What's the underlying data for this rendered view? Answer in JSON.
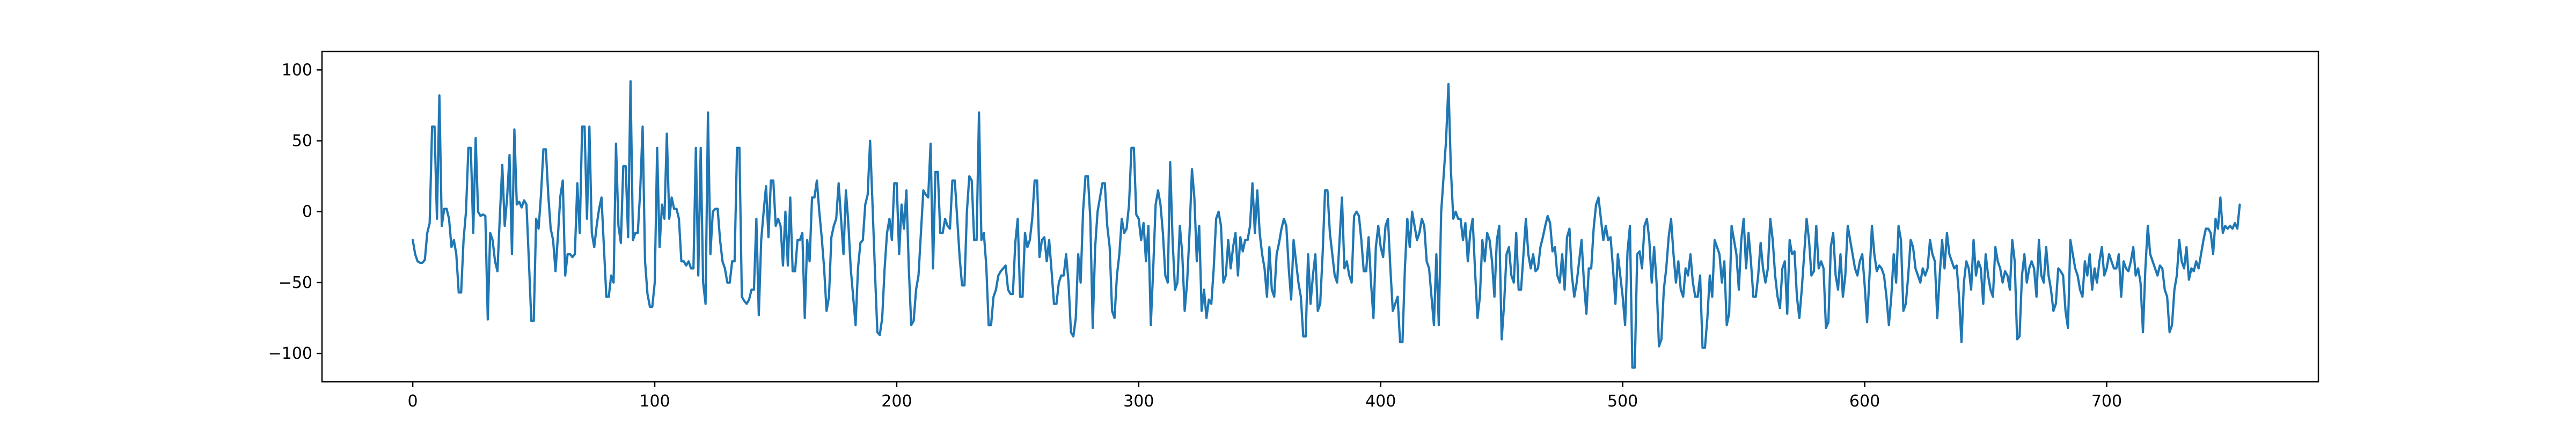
{
  "chart_data": {
    "type": "line",
    "title": "",
    "xlabel": "",
    "ylabel": "",
    "xlim": [
      -37.5,
      787.5
    ],
    "ylim": [
      -120,
      113
    ],
    "xticks": [
      0,
      100,
      200,
      300,
      400,
      500,
      600,
      700
    ],
    "yticks": [
      -100,
      -50,
      0,
      50,
      100
    ],
    "grid": false,
    "legend": "none",
    "colors": {
      "series": "#1f77b4",
      "axes": "#000000",
      "background": "#ffffff"
    },
    "series": [
      {
        "values": [
          -20,
          -30,
          -35,
          -36,
          -36,
          -34,
          -15,
          -8,
          60,
          60,
          -5,
          82,
          -10,
          2,
          2,
          -5,
          -25,
          -20,
          -30,
          -57,
          -57,
          -20,
          0,
          45,
          45,
          -15,
          52,
          0,
          -3,
          -2,
          -3,
          -76,
          -15,
          -20,
          -35,
          -42,
          -3,
          33,
          -10,
          10,
          40,
          -30,
          58,
          5,
          7,
          3,
          8,
          5,
          -35,
          -77,
          -77,
          -5,
          -12,
          12,
          44,
          44,
          12,
          -12,
          -20,
          -42,
          -17,
          11,
          22,
          -45,
          -30,
          -30,
          -32,
          -30,
          20,
          -15,
          60,
          60,
          -5,
          60,
          -15,
          -25,
          -10,
          2,
          10,
          -25,
          -60,
          -60,
          -45,
          -50,
          48,
          -10,
          -22,
          32,
          32,
          -18,
          92,
          -20,
          -15,
          -15,
          15,
          60,
          -35,
          -58,
          -67,
          -67,
          -50,
          45,
          -25,
          5,
          -5,
          55,
          -5,
          10,
          2,
          2,
          -5,
          -35,
          -35,
          -38,
          -35,
          -40,
          -40,
          45,
          -45,
          45,
          -50,
          -65,
          70,
          -30,
          0,
          2,
          2,
          -20,
          -35,
          -40,
          -50,
          -50,
          -35,
          -35,
          45,
          45,
          -60,
          -63,
          -65,
          -62,
          -55,
          -55,
          -5,
          -73,
          -20,
          0,
          18,
          -18,
          22,
          22,
          -10,
          -5,
          -10,
          -38,
          0,
          -38,
          10,
          -42,
          -42,
          -20,
          -20,
          -15,
          -75,
          -20,
          -35,
          10,
          10,
          22,
          0,
          -18,
          -40,
          -70,
          -60,
          -18,
          -10,
          -5,
          20,
          -5,
          -30,
          15,
          -8,
          -40,
          -60,
          -80,
          -40,
          -22,
          -20,
          5,
          12,
          50,
          5,
          -42,
          -85,
          -87,
          -75,
          -40,
          -15,
          -5,
          -20,
          20,
          20,
          -30,
          5,
          -12,
          15,
          -40,
          -80,
          -77,
          -55,
          -45,
          -15,
          15,
          12,
          10,
          48,
          -40,
          28,
          28,
          -15,
          -15,
          -5,
          -10,
          -12,
          22,
          22,
          -5,
          -32,
          -52,
          -52,
          0,
          25,
          22,
          -20,
          -20,
          70,
          -20,
          -15,
          -38,
          -80,
          -80,
          -60,
          -55,
          -45,
          -42,
          -40,
          -38,
          -55,
          -58,
          -58,
          -22,
          -5,
          -60,
          -60,
          -15,
          -25,
          -20,
          -5,
          22,
          22,
          -32,
          -20,
          -18,
          -35,
          -20,
          -42,
          -65,
          -65,
          -50,
          -45,
          -45,
          -30,
          -50,
          -85,
          -88,
          -75,
          -30,
          -50,
          0,
          25,
          25,
          -5,
          -82,
          -25,
          0,
          10,
          20,
          20,
          -10,
          -25,
          -70,
          -75,
          -45,
          -30,
          -5,
          -15,
          -12,
          5,
          45,
          45,
          -2,
          -5,
          -20,
          -8,
          -35,
          -10,
          -80,
          -40,
          5,
          15,
          5,
          -15,
          -45,
          -50,
          35,
          -20,
          -55,
          -50,
          -10,
          -30,
          -70,
          -50,
          -15,
          30,
          10,
          -35,
          -10,
          -70,
          -55,
          -75,
          -62,
          -65,
          -40,
          -5,
          0,
          -10,
          -50,
          -45,
          -20,
          -40,
          -25,
          -15,
          -45,
          -18,
          -28,
          -20,
          -20,
          -10,
          20,
          -15,
          15,
          -15,
          -30,
          -40,
          -60,
          -25,
          -55,
          -60,
          -30,
          -22,
          -12,
          -5,
          -10,
          -40,
          -62,
          -20,
          -35,
          -50,
          -60,
          -88,
          -88,
          -30,
          -65,
          -45,
          -30,
          -70,
          -65,
          -30,
          15,
          15,
          -15,
          -30,
          -45,
          -50,
          -20,
          10,
          -40,
          -35,
          -45,
          -50,
          -3,
          0,
          -3,
          -20,
          -42,
          -42,
          -18,
          -50,
          -75,
          -25,
          -10,
          -25,
          -32,
          -10,
          -5,
          -40,
          -70,
          -65,
          -60,
          -92,
          -92,
          -40,
          -5,
          -25,
          0,
          -10,
          -20,
          -15,
          -5,
          -10,
          -35,
          -40,
          -60,
          -80,
          -30,
          -80,
          0,
          25,
          50,
          90,
          30,
          -5,
          0,
          -5,
          -5,
          -20,
          -8,
          -35,
          -15,
          -5,
          -42,
          -75,
          -60,
          -20,
          -35,
          -15,
          -20,
          -35,
          -60,
          -20,
          -10,
          -90,
          -65,
          -30,
          -25,
          -45,
          -50,
          -15,
          -55,
          -55,
          -30,
          -5,
          -30,
          -40,
          -30,
          -42,
          -40,
          -25,
          -18,
          -10,
          -3,
          -8,
          -28,
          -25,
          -45,
          -50,
          -30,
          -55,
          -18,
          -12,
          -45,
          -60,
          -50,
          -35,
          -20,
          -50,
          -72,
          -40,
          -40,
          -12,
          5,
          10,
          -5,
          -20,
          -10,
          -20,
          -18,
          -40,
          -65,
          -30,
          -45,
          -60,
          -80,
          -28,
          -10,
          -110,
          -110,
          -30,
          -28,
          -40,
          -10,
          -5,
          -20,
          -50,
          -25,
          -50,
          -95,
          -90,
          -55,
          -40,
          -18,
          -5,
          -30,
          -50,
          -35,
          -55,
          -60,
          -40,
          -45,
          -30,
          -50,
          -60,
          -60,
          -45,
          -96,
          -96,
          -75,
          -45,
          -60,
          -20,
          -25,
          -30,
          -50,
          -35,
          -80,
          -72,
          -10,
          -20,
          -30,
          -55,
          -20,
          -5,
          -40,
          -15,
          -35,
          -60,
          -60,
          -45,
          -22,
          -40,
          -50,
          -40,
          -5,
          -20,
          -45,
          -60,
          -68,
          -40,
          -35,
          -72,
          -20,
          -30,
          -28,
          -60,
          -75,
          -55,
          -30,
          -5,
          -20,
          -45,
          -42,
          -10,
          -40,
          -35,
          -40,
          -82,
          -78,
          -25,
          -15,
          -45,
          -55,
          -30,
          -60,
          -45,
          -10,
          -20,
          -30,
          -40,
          -45,
          -35,
          -30,
          -52,
          -78,
          -45,
          -10,
          -30,
          -42,
          -38,
          -40,
          -45,
          -60,
          -80,
          -60,
          -30,
          -50,
          -10,
          -20,
          -70,
          -65,
          -45,
          -20,
          -25,
          -40,
          -45,
          -50,
          -40,
          -45,
          -40,
          -20,
          -30,
          -35,
          -75,
          -45,
          -20,
          -40,
          -15,
          -30,
          -35,
          -40,
          -38,
          -60,
          -92,
          -50,
          -35,
          -40,
          -55,
          -20,
          -45,
          -35,
          -40,
          -65,
          -30,
          -45,
          -55,
          -60,
          -25,
          -35,
          -40,
          -50,
          -42,
          -45,
          -55,
          -20,
          -35,
          -90,
          -88,
          -45,
          -30,
          -50,
          -40,
          -35,
          -40,
          -60,
          -20,
          -45,
          -50,
          -25,
          -45,
          -55,
          -70,
          -65,
          -40,
          -42,
          -45,
          -70,
          -82,
          -20,
          -30,
          -40,
          -45,
          -55,
          -60,
          -35,
          -45,
          -30,
          -55,
          -40,
          -50,
          -35,
          -25,
          -45,
          -40,
          -30,
          -35,
          -40,
          -40,
          -30,
          -60,
          -35,
          -40,
          -42,
          -35,
          -25,
          -45,
          -40,
          -50,
          -85,
          -40,
          -10,
          -30,
          -35,
          -40,
          -45,
          -38,
          -40,
          -55,
          -60,
          -85,
          -80,
          -55,
          -45,
          -20,
          -35,
          -40,
          -25,
          -48,
          -40,
          -42,
          -35,
          -40,
          -30,
          -20,
          -12,
          -12,
          -15,
          -30,
          -5,
          -12,
          10,
          -15,
          -10,
          -12,
          -10,
          -12,
          -8,
          -12,
          5
        ]
      }
    ]
  }
}
